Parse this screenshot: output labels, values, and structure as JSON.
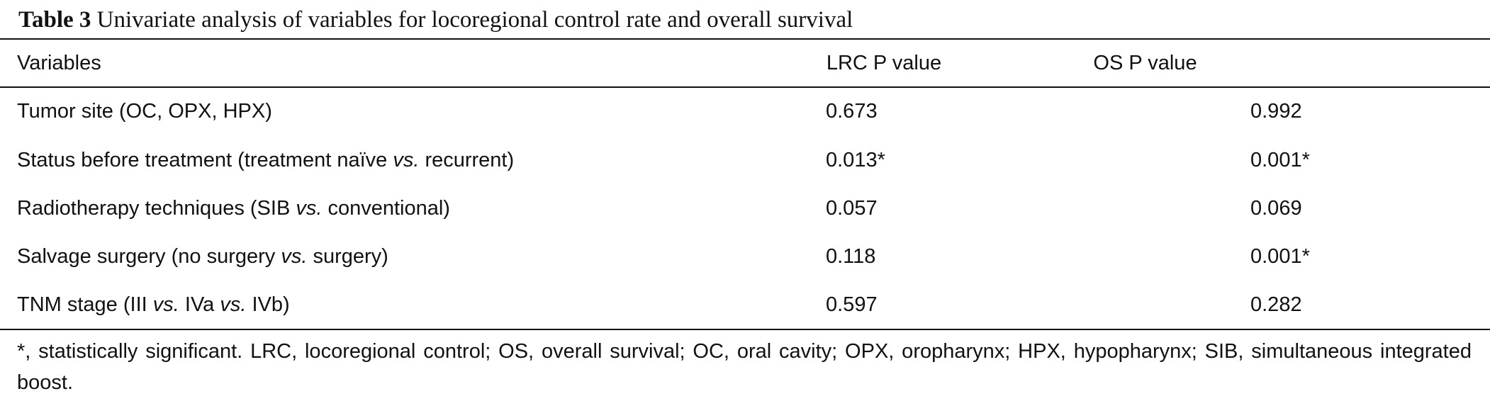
{
  "caption": {
    "label": "Table 3",
    "text": "Univariate analysis of variables for locoregional control rate and overall survival"
  },
  "table": {
    "headers": [
      "Variables",
      "LRC P value",
      "OS P value"
    ],
    "rows": [
      {
        "variable_parts": [
          {
            "text": "Tumor site (OC, OPX, HPX)",
            "italic": false
          }
        ],
        "lrc_p": "0.673",
        "os_p": "0.992"
      },
      {
        "variable_parts": [
          {
            "text": "Status before treatment (treatment naïve ",
            "italic": false
          },
          {
            "text": "vs.",
            "italic": true
          },
          {
            "text": " recurrent)",
            "italic": false
          }
        ],
        "lrc_p": "0.013*",
        "os_p": "0.001*"
      },
      {
        "variable_parts": [
          {
            "text": "Radiotherapy techniques (SIB ",
            "italic": false
          },
          {
            "text": "vs.",
            "italic": true
          },
          {
            "text": " conventional)",
            "italic": false
          }
        ],
        "lrc_p": "0.057",
        "os_p": "0.069"
      },
      {
        "variable_parts": [
          {
            "text": "Salvage surgery (no surgery ",
            "italic": false
          },
          {
            "text": "vs.",
            "italic": true
          },
          {
            "text": " surgery)",
            "italic": false
          }
        ],
        "lrc_p": "0.118",
        "os_p": "0.001*"
      },
      {
        "variable_parts": [
          {
            "text": "TNM stage (III ",
            "italic": false
          },
          {
            "text": "vs.",
            "italic": true
          },
          {
            "text": " IVa ",
            "italic": false
          },
          {
            "text": "vs.",
            "italic": true
          },
          {
            "text": " IVb)",
            "italic": false
          }
        ],
        "lrc_p": "0.597",
        "os_p": "0.282"
      }
    ]
  },
  "footnote": "*, statistically significant. LRC, locoregional control; OS, overall survival; OC, oral cavity; OPX, oropharynx; HPX, hypopharynx; SIB, simultaneous integrated boost."
}
